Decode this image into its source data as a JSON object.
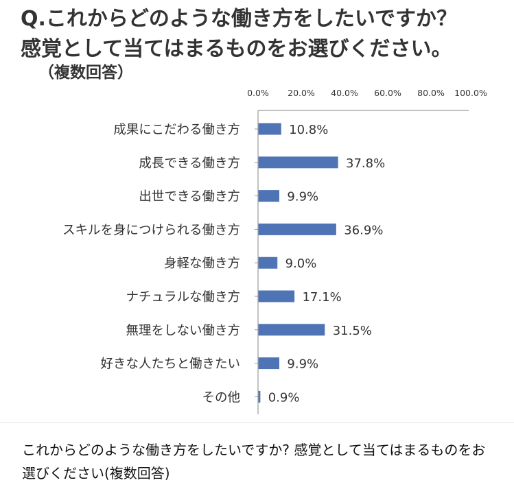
{
  "figure": {
    "title_line1": "Q.これからどのような働き方をしたいですか？",
    "title_line2": "感覚として当てはまるものをお選びください。",
    "subtitle": "（複数回答）"
  },
  "caption": "これからどのような働き方をしたいですか? 感覚として当てはまるものをお選びください(複数回答)",
  "colors": {
    "bar": "#4f74b5",
    "axis": "#9a9a9a",
    "text": "#333333"
  },
  "chart_data": {
    "type": "bar",
    "orientation": "horizontal",
    "categories": [
      "成果にこだわる働き方",
      "成長できる働き方",
      "出世できる働き方",
      "スキルを身につけられる働き方",
      "身軽な働き方",
      "ナチュラルな働き方",
      "無理をしない働き方",
      "好きな人たちと働きたい",
      "その他"
    ],
    "values": [
      10.8,
      37.8,
      9.9,
      36.9,
      9.0,
      17.1,
      31.5,
      9.9,
      0.9
    ],
    "value_labels": [
      "10.8%",
      "37.8%",
      "9.9%",
      "36.9%",
      "9.0%",
      "17.1%",
      "31.5%",
      "9.9%",
      "0.9%"
    ],
    "x_ticks": [
      "0.0%",
      "20.0%",
      "40.0%",
      "60.0%",
      "80.0%",
      "100.0%"
    ],
    "xlim": [
      0,
      100
    ],
    "axis_position": "top",
    "grid": false,
    "legend": "none"
  }
}
